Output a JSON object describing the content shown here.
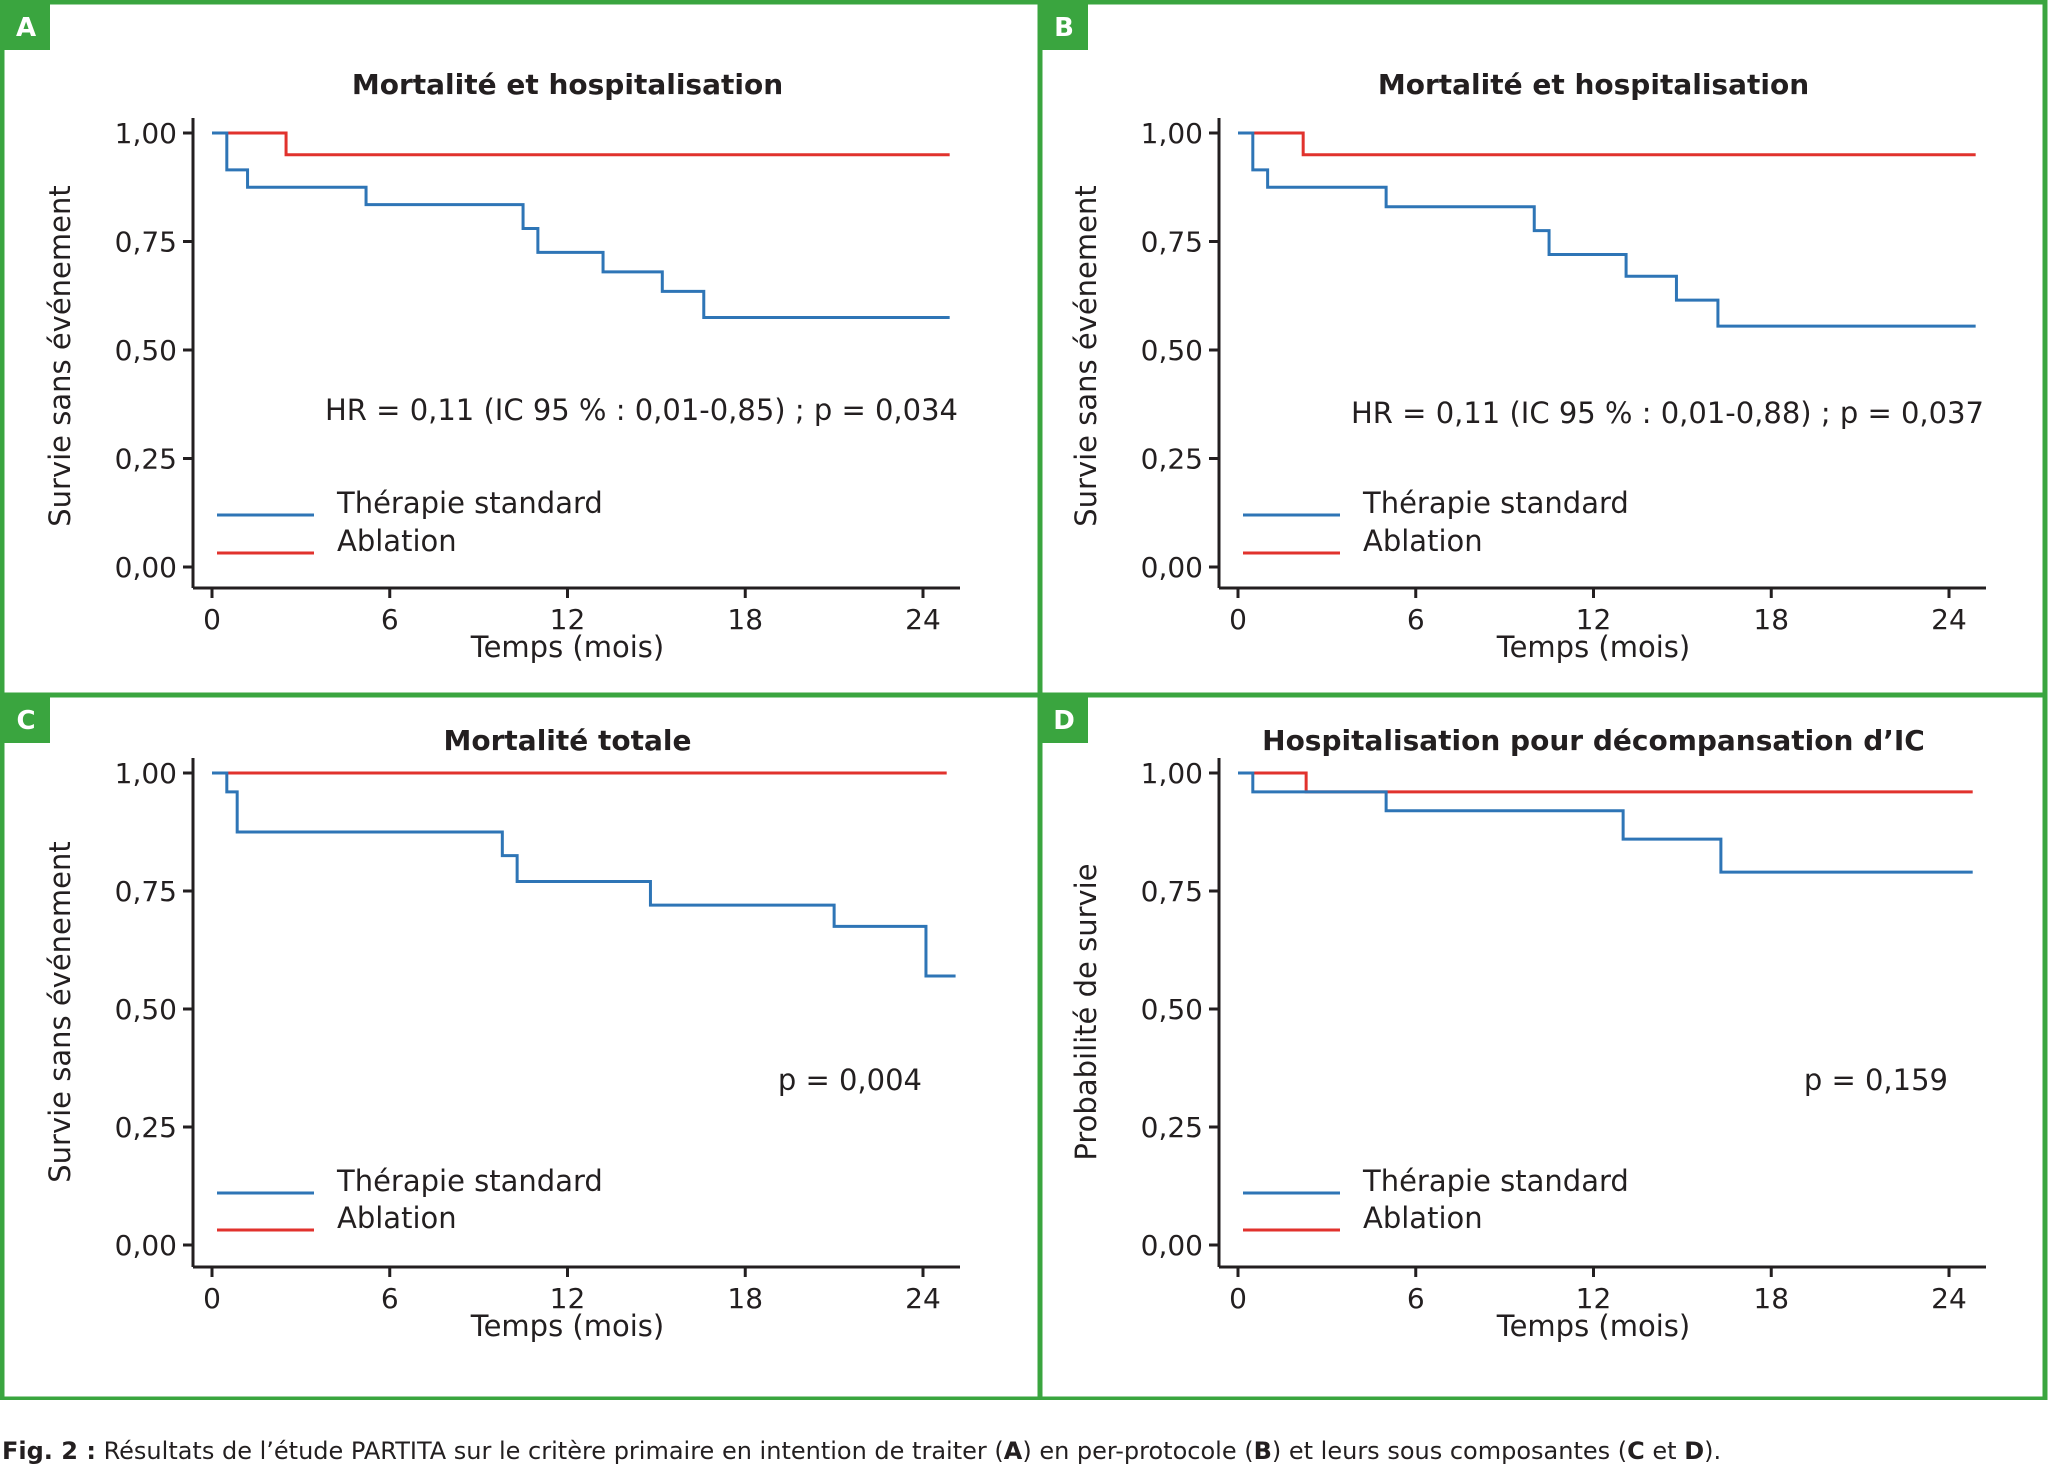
{
  "colors": {
    "frame": "#3aa53f",
    "standard": "#2e75b6",
    "ablation": "#e1322d",
    "text": "#231f20"
  },
  "caption": {
    "prefix": "Fig. 2 :",
    "part1": " Résultats de l’étude PARTITA sur le critère primaire en intention de traiter (",
    "a": "A",
    "part2": ") en per-protocole (",
    "b": "B",
    "part3": ") et leurs sous composantes (",
    "c": "C",
    "part4": " et ",
    "d": "D",
    "part5": ")."
  },
  "chart_data": [
    {
      "panel": "A",
      "type": "line",
      "step": true,
      "title": "Mortalité et hospitalisation",
      "xlabel": "Temps (mois)",
      "ylabel": "Survie sans événement",
      "xlim": [
        0,
        25
      ],
      "ylim": [
        0,
        1
      ],
      "xticks": [
        {
          "v": 0,
          "label": "0"
        },
        {
          "v": 6,
          "label": "6"
        },
        {
          "v": 12,
          "label": "12"
        },
        {
          "v": 18,
          "label": "18"
        },
        {
          "v": 24,
          "label": "24"
        }
      ],
      "yticks": [
        {
          "v": 0,
          "label": "0,00"
        },
        {
          "v": 0.25,
          "label": "0,25"
        },
        {
          "v": 0.5,
          "label": "0,50"
        },
        {
          "v": 0.75,
          "label": "0,75"
        },
        {
          "v": 1,
          "label": "1,00"
        }
      ],
      "annotation": "HR = 0,11 (IC 95 % : 0,01-0,85) ; p = 0,034",
      "legend_position": "bottom-left",
      "series": [
        {
          "name": "Thérapie standard",
          "color": "#2e75b6",
          "x": [
            0,
            0.5,
            1.2,
            5.2,
            10.5,
            11.0,
            13.2,
            15.2,
            16.6,
            24.9
          ],
          "y": [
            1.0,
            0.915,
            0.875,
            0.835,
            0.78,
            0.725,
            0.68,
            0.635,
            0.575,
            0.575
          ]
        },
        {
          "name": "Ablation",
          "color": "#e1322d",
          "x": [
            0,
            2.5,
            24.9
          ],
          "y": [
            1.0,
            0.95,
            0.95
          ]
        }
      ]
    },
    {
      "panel": "B",
      "type": "line",
      "step": true,
      "title": "Mortalité et hospitalisation",
      "xlabel": "Temps (mois)",
      "ylabel": "Survie sans événement",
      "xlim": [
        0,
        25
      ],
      "ylim": [
        0,
        1
      ],
      "xticks": [
        {
          "v": 0,
          "label": "0"
        },
        {
          "v": 6,
          "label": "6"
        },
        {
          "v": 12,
          "label": "12"
        },
        {
          "v": 18,
          "label": "18"
        },
        {
          "v": 24,
          "label": "24"
        }
      ],
      "yticks": [
        {
          "v": 0,
          "label": "0,00"
        },
        {
          "v": 0.25,
          "label": "0,25"
        },
        {
          "v": 0.5,
          "label": "0,50"
        },
        {
          "v": 0.75,
          "label": "0,75"
        },
        {
          "v": 1,
          "label": "1,00"
        }
      ],
      "annotation": "HR = 0,11 (IC 95 % : 0,01-0,88) ; p = 0,037",
      "legend_position": "bottom-left",
      "series": [
        {
          "name": "Thérapie standard",
          "color": "#2e75b6",
          "x": [
            0,
            0.5,
            1.0,
            5.0,
            10.0,
            10.5,
            13.1,
            14.8,
            16.2,
            24.9
          ],
          "y": [
            1.0,
            0.915,
            0.875,
            0.83,
            0.775,
            0.72,
            0.67,
            0.615,
            0.555,
            0.555
          ]
        },
        {
          "name": "Ablation",
          "color": "#e1322d",
          "x": [
            0,
            2.2,
            24.9
          ],
          "y": [
            1.0,
            0.95,
            0.95
          ]
        }
      ]
    },
    {
      "panel": "C",
      "type": "line",
      "step": true,
      "title": "Mortalité totale",
      "xlabel": "Temps (mois)",
      "ylabel": "Survie sans événement",
      "xlim": [
        0,
        25
      ],
      "ylim": [
        0,
        1
      ],
      "xticks": [
        {
          "v": 0,
          "label": "0"
        },
        {
          "v": 6,
          "label": "6"
        },
        {
          "v": 12,
          "label": "12"
        },
        {
          "v": 18,
          "label": "18"
        },
        {
          "v": 24,
          "label": "24"
        }
      ],
      "yticks": [
        {
          "v": 0,
          "label": "0,00"
        },
        {
          "v": 0.25,
          "label": "0,25"
        },
        {
          "v": 0.5,
          "label": "0,50"
        },
        {
          "v": 0.75,
          "label": "0,75"
        },
        {
          "v": 1,
          "label": "1,00"
        }
      ],
      "annotation": "p = 0,004",
      "legend_position": "bottom-left",
      "series": [
        {
          "name": "Thérapie standard",
          "color": "#2e75b6",
          "x": [
            0,
            0.5,
            0.85,
            9.8,
            10.3,
            14.8,
            21.0,
            24.1,
            25.1
          ],
          "y": [
            1.0,
            0.96,
            0.875,
            0.825,
            0.77,
            0.72,
            0.675,
            0.57,
            0.57
          ]
        },
        {
          "name": "Ablation",
          "color": "#e1322d",
          "x": [
            0,
            24.8
          ],
          "y": [
            1.0,
            1.0
          ]
        }
      ]
    },
    {
      "panel": "D",
      "type": "line",
      "step": true,
      "title": "Hospitalisation pour décompansation d’IC",
      "xlabel": "Temps (mois)",
      "ylabel": "Probabilité de survie",
      "xlim": [
        0,
        25
      ],
      "ylim": [
        0,
        1
      ],
      "xticks": [
        {
          "v": 0,
          "label": "0"
        },
        {
          "v": 6,
          "label": "6"
        },
        {
          "v": 12,
          "label": "12"
        },
        {
          "v": 18,
          "label": "18"
        },
        {
          "v": 24,
          "label": "24"
        }
      ],
      "yticks": [
        {
          "v": 0,
          "label": "0,00"
        },
        {
          "v": 0.25,
          "label": "0,25"
        },
        {
          "v": 0.5,
          "label": "0,50"
        },
        {
          "v": 0.75,
          "label": "0,75"
        },
        {
          "v": 1,
          "label": "1,00"
        }
      ],
      "annotation": "p = 0,159",
      "legend_position": "bottom-left",
      "series": [
        {
          "name": "Thérapie standard",
          "color": "#2e75b6",
          "x": [
            0,
            0.5,
            5.0,
            13.0,
            16.3,
            24.8
          ],
          "y": [
            1.0,
            0.96,
            0.92,
            0.86,
            0.79,
            0.79
          ]
        },
        {
          "name": "Ablation",
          "color": "#e1322d",
          "x": [
            0,
            2.3,
            24.8
          ],
          "y": [
            1.0,
            0.96,
            0.96
          ]
        }
      ]
    }
  ]
}
